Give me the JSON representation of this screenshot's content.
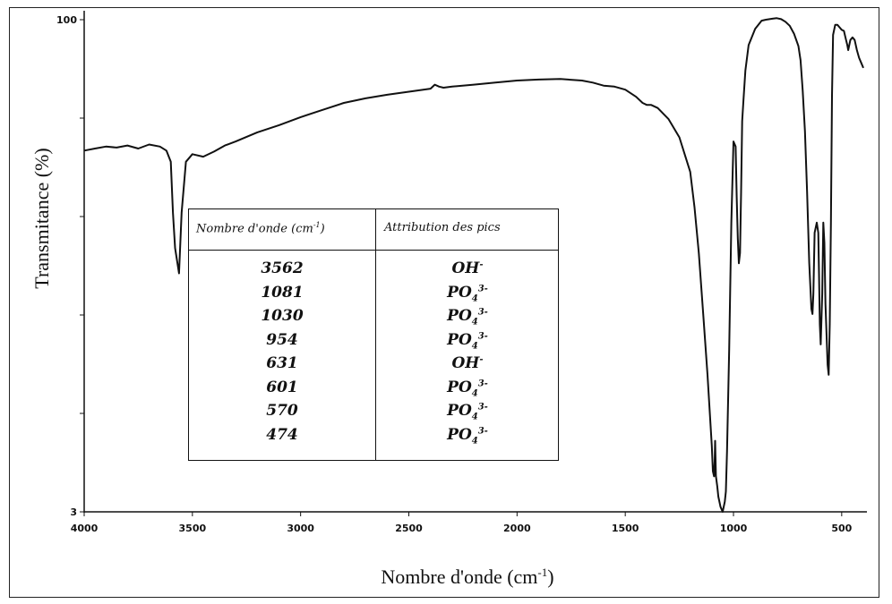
{
  "chart_data": {
    "type": "line",
    "xlabel": "Nombre d'onde (cm",
    "xlabel_sup": "-1",
    "xlabel_tail": ")",
    "ylabel": "Transmitance (%)",
    "x_reversed": true,
    "xlim": [
      4000,
      400
    ],
    "ylim": [
      3,
      100
    ],
    "xticks": [
      "4000",
      "3500",
      "3000",
      "2500",
      "2000",
      "1500",
      "1000",
      "500"
    ],
    "xtick_values": [
      4000,
      3500,
      3000,
      2500,
      2000,
      1500,
      1000,
      500
    ],
    "yticks": [
      "100",
      "3"
    ],
    "ytick_values": [
      100,
      3
    ],
    "grid": false,
    "series": [
      {
        "x": [
          4000,
          3950,
          3900,
          3850,
          3800,
          3750,
          3700,
          3650,
          3620,
          3600,
          3590,
          3580,
          3562,
          3550,
          3530,
          3500,
          3450,
          3400,
          3350,
          3300,
          3200,
          3100,
          3000,
          2900,
          2800,
          2700,
          2600,
          2500,
          2400,
          2380,
          2360,
          2340,
          2300,
          2200,
          2100,
          2000,
          1900,
          1800,
          1700,
          1650,
          1600,
          1550,
          1500,
          1450,
          1420,
          1400,
          1380,
          1350,
          1300,
          1250,
          1200,
          1180,
          1160,
          1140,
          1120,
          1100,
          1095,
          1090,
          1087,
          1085,
          1081,
          1075,
          1070,
          1060,
          1050,
          1040,
          1035,
          1030,
          1020,
          1010,
          1000,
          990,
          985,
          980,
          975,
          970,
          965,
          960,
          954,
          945,
          930,
          900,
          870,
          850,
          820,
          800,
          780,
          760,
          740,
          720,
          700,
          690,
          680,
          670,
          660,
          650,
          640,
          635,
          631,
          625,
          615,
          608,
          605,
          601,
          597,
          590,
          585,
          580,
          575,
          570,
          565,
          560,
          555,
          550,
          545,
          540,
          530,
          520,
          510,
          500,
          490,
          480,
          474,
          470,
          460,
          450,
          440,
          430,
          420,
          410,
          400
        ],
        "y": [
          74.2,
          74.6,
          75.0,
          74.8,
          75.2,
          74.6,
          75.4,
          75.0,
          74.2,
          72.0,
          62.0,
          55.0,
          50.0,
          62.0,
          72.0,
          73.5,
          73.0,
          74.0,
          75.2,
          76.0,
          77.8,
          79.2,
          80.8,
          82.2,
          83.6,
          84.5,
          85.2,
          85.8,
          86.4,
          87.2,
          86.8,
          86.6,
          86.8,
          87.2,
          87.6,
          88.0,
          88.2,
          88.3,
          88.0,
          87.6,
          87.0,
          86.8,
          86.2,
          84.8,
          83.6,
          83.2,
          83.2,
          82.6,
          80.4,
          76.8,
          70.0,
          63.0,
          54.0,
          42.0,
          30.0,
          16.0,
          11.0,
          10.0,
          13.0,
          17.0,
          10.0,
          8.0,
          6.0,
          4.0,
          3.0,
          5.0,
          7.0,
          15.0,
          35.0,
          60.0,
          76.0,
          75.0,
          65.0,
          57.0,
          52.0,
          54.0,
          66.0,
          80.0,
          84.0,
          90.0,
          95.0,
          98.2,
          99.8,
          100.0,
          100.2,
          100.3,
          100.1,
          99.6,
          98.8,
          97.2,
          94.8,
          92.0,
          86.0,
          78.0,
          66.0,
          52.0,
          43.0,
          42.0,
          46.0,
          58.0,
          60.0,
          58.0,
          50.0,
          40.0,
          36.0,
          46.0,
          60.0,
          56.0,
          44.0,
          38.0,
          32.0,
          30.0,
          40.0,
          60.0,
          85.0,
          97.0,
          99.0,
          99.0,
          98.5,
          98.0,
          97.8,
          96.0,
          95.0,
          94.0,
          96.0,
          96.5,
          96.0,
          94.0,
          92.5,
          91.5,
          90.5
        ]
      }
    ],
    "peak_table": {
      "header_col1": "Nombre d'onde (cm",
      "header_col1_sup": "-1",
      "header_col1_tail": ")",
      "header_col2": "Attribution des pics",
      "rows": [
        {
          "wavenumber": "3562",
          "group": "OH",
          "charge": "-"
        },
        {
          "wavenumber": "1081",
          "group": "PO",
          "sub": "4",
          "charge": "3-"
        },
        {
          "wavenumber": "1030",
          "group": "PO",
          "sub": "4",
          "charge": "3-"
        },
        {
          "wavenumber": "954",
          "group": "PO",
          "sub": "4",
          "charge": "3-"
        },
        {
          "wavenumber": "631",
          "group": "OH",
          "charge": "-"
        },
        {
          "wavenumber": "601",
          "group": "PO",
          "sub": "4",
          "charge": "3-"
        },
        {
          "wavenumber": "570",
          "group": "PO",
          "sub": "4",
          "charge": "3-"
        },
        {
          "wavenumber": "474",
          "group": "PO",
          "sub": "4",
          "charge": "3-"
        }
      ]
    }
  }
}
